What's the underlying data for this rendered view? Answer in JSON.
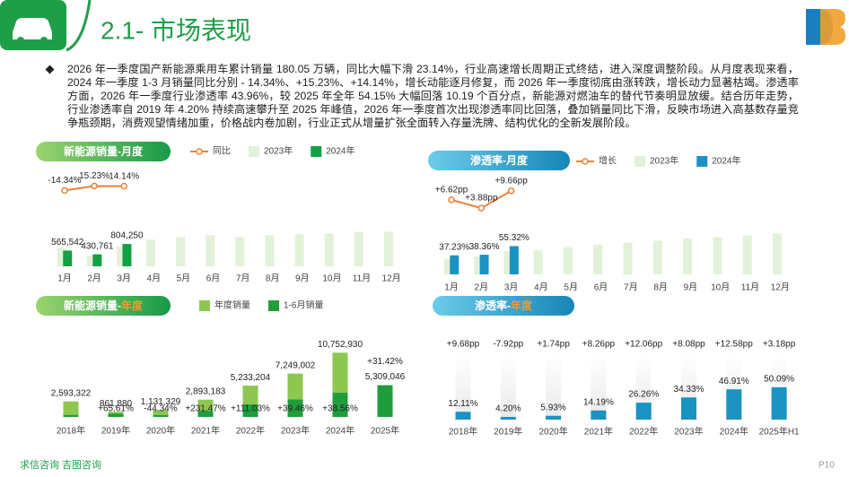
{
  "header": {
    "title": "2.1- 市场表现"
  },
  "summary": "2026 年一季度国产新能源乘用车累计销量 180.05 万辆，同比大幅下滑 23.14%，行业高速增长周期正式终结，进入深度调整阶段。从月度表现来看，2024 年一季度 1-3 月销量同比分别 - 14.34%、+15.23%、+14.14%，增长动能逐月修复，而 2026 年一季度彻底由涨转跌，增长动力显著枯竭。渗透率方面，2026 年一季度行业渗透率 43.96%，较 2025 年全年 54.15% 大幅回落 10.19 个百分点，新能源对燃油车的替代节奏明显放缓。结合历年走势，行业渗透率自 2019 年 4.20% 持续高速攀升至 2025 年峰值，2026 年一季度首次出现渗透率同比回落，叠加销量同比下滑，反映市场进入高基数存量竞争瓶颈期，消费观望情绪加重，价格战内卷加剧，行业正式从增量扩张全面转入存量洗牌、结构优化的全新发展阶段。",
  "footer": {
    "brand": "求信咨询  吉图咨询",
    "page": "P10"
  },
  "chart_data": [
    {
      "type": "bar",
      "title": "新能源销量-月度",
      "barmode": "group",
      "categories": [
        "1月",
        "2月",
        "3月",
        "4月",
        "5月",
        "6月",
        "7月",
        "8月",
        "9月",
        "10月",
        "11月",
        "12月"
      ],
      "ylim": [
        0,
        3000000
      ],
      "y2lim": [
        -60,
        60
      ],
      "series": [
        {
          "name": "同比",
          "type": "line",
          "axis": "y2",
          "color": "#e8833a",
          "values": [
            -14.34,
            15.23,
            14.14,
            null,
            null,
            null,
            null,
            null,
            null,
            null,
            null,
            null
          ],
          "value_labels": [
            "-14.34%",
            "15.23%",
            "14.14%",
            null,
            null,
            null,
            null,
            null,
            null,
            null,
            null,
            null
          ]
        },
        {
          "name": "2023年",
          "color": "#e2f1d9",
          "values": [
            660200,
            373800,
            704600,
            960000,
            1050000,
            1120000,
            1050000,
            1120000,
            1150000,
            1180000,
            1240000,
            1240000
          ]
        },
        {
          "name": "2024年",
          "color": "#14a044",
          "values": [
            565542,
            430761,
            804250,
            null,
            null,
            null,
            null,
            null,
            null,
            null,
            null,
            null
          ],
          "value_labels": [
            "565,542",
            "430,761",
            "804,250",
            null,
            null,
            null,
            null,
            null,
            null,
            null,
            null,
            null
          ]
        }
      ]
    },
    {
      "type": "bar",
      "title": "渗透率-月度",
      "barmode": "group",
      "categories": [
        "1月",
        "2月",
        "3月",
        "4月",
        "5月",
        "6月",
        "7月",
        "8月",
        "9月",
        "10月",
        "11月",
        "12月"
      ],
      "ylim": [
        0,
        100
      ],
      "y2lim": [
        0,
        12
      ],
      "series": [
        {
          "name": "增长",
          "type": "line",
          "axis": "y2",
          "color": "#e8833a",
          "values": [
            6.62,
            3.88,
            9.66,
            null,
            null,
            null,
            null,
            null,
            null,
            null,
            null,
            null
          ],
          "value_labels": [
            "+6.62pp",
            "+3.88pp",
            "+9.66pp",
            null,
            null,
            null,
            null,
            null,
            null,
            null,
            null,
            null
          ]
        },
        {
          "name": "2023年",
          "color": "#e2f1d9",
          "values": [
            30.61,
            34.48,
            45.66,
            47,
            53,
            58,
            62,
            66,
            70,
            73,
            76,
            80
          ]
        },
        {
          "name": "2024年",
          "color": "#1a93c2",
          "values": [
            37.23,
            38.36,
            55.32,
            null,
            null,
            null,
            null,
            null,
            null,
            null,
            null,
            null
          ],
          "value_labels": [
            "37.23%",
            "38.36%",
            "55.32%",
            null,
            null,
            null,
            null,
            null,
            null,
            null,
            null,
            null
          ]
        }
      ]
    },
    {
      "type": "bar",
      "title": "新能源销量-",
      "title_highlight": "年度",
      "highlight_color": "#f39a2b",
      "barmode": "overlay",
      "categories": [
        "2018年",
        "2019年",
        "2020年",
        "2021年",
        "2022年",
        "2023年",
        "2024年",
        "2025年"
      ],
      "ylim": [
        0,
        15000000
      ],
      "series": [
        {
          "name": "年度销量",
          "color": "#8dc750",
          "values": [
            2593322,
            861880,
            1131329,
            2893183,
            5233204,
            7249002,
            10752930,
            null
          ],
          "value_labels": [
            "2,593,322",
            "861,880",
            "1,131,329",
            "2,893,183",
            "5,233,204",
            "7,249,002",
            "10,752,930",
            null
          ]
        },
        {
          "name": "1-6月销量",
          "color": "#1f9d3d",
          "values": [
            324300,
            537000,
            298900,
            990700,
            2090700,
            2915600,
            4039900,
            5309046
          ],
          "value_labels": [
            null,
            null,
            null,
            null,
            null,
            null,
            null,
            "5,309,046"
          ],
          "annotations": [
            null,
            "+65.61%",
            "-44.34%",
            "+231.47%",
            "+111.03%",
            "+39.46%",
            "+38.56%",
            "+31.42%"
          ]
        }
      ]
    },
    {
      "type": "bar",
      "title": "渗透率-",
      "title_highlight": "年度",
      "highlight_color": "#f39a2b",
      "categories": [
        "2018年",
        "2019年",
        "2020年",
        "2021年",
        "2022年",
        "2023年",
        "2024年",
        "2025年H1"
      ],
      "ylim": [
        0,
        100
      ],
      "color": "#1a93c2",
      "values": [
        12.11,
        4.2,
        5.93,
        14.19,
        26.26,
        34.33,
        46.91,
        50.09
      ],
      "value_labels": [
        "12.11%",
        "4.20%",
        "5.93%",
        "14.19%",
        "26.26%",
        "34.33%",
        "46.91%",
        "50.09%"
      ],
      "annotations": [
        "+9.68pp",
        "-7.92pp",
        "+1.74pp",
        "+8.26pp",
        "+12.06pp",
        "+8.08pp",
        "+12.58pp",
        "+3.18pp"
      ]
    }
  ]
}
